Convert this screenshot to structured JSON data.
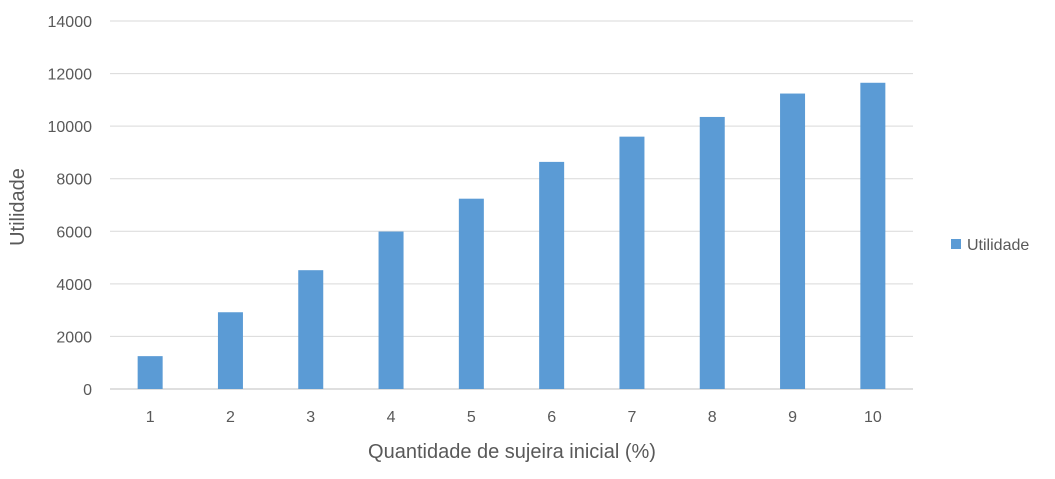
{
  "chart_data": {
    "type": "bar",
    "categories": [
      "1",
      "2",
      "3",
      "4",
      "5",
      "6",
      "7",
      "8",
      "9",
      "10"
    ],
    "series": [
      {
        "name": "Utilidade",
        "color": "#5b9bd5",
        "values": [
          1250,
          2920,
          4520,
          5990,
          7240,
          8640,
          9600,
          10350,
          11240,
          11650
        ]
      }
    ],
    "xlabel": "Quantidade de sujeira inicial (%)",
    "ylabel": "Utilidade",
    "ylim": [
      0,
      14000
    ],
    "yticks": [
      "0",
      "2000",
      "4000",
      "6000",
      "8000",
      "10000",
      "12000",
      "14000"
    ],
    "grid": true,
    "legend_position": "right"
  }
}
